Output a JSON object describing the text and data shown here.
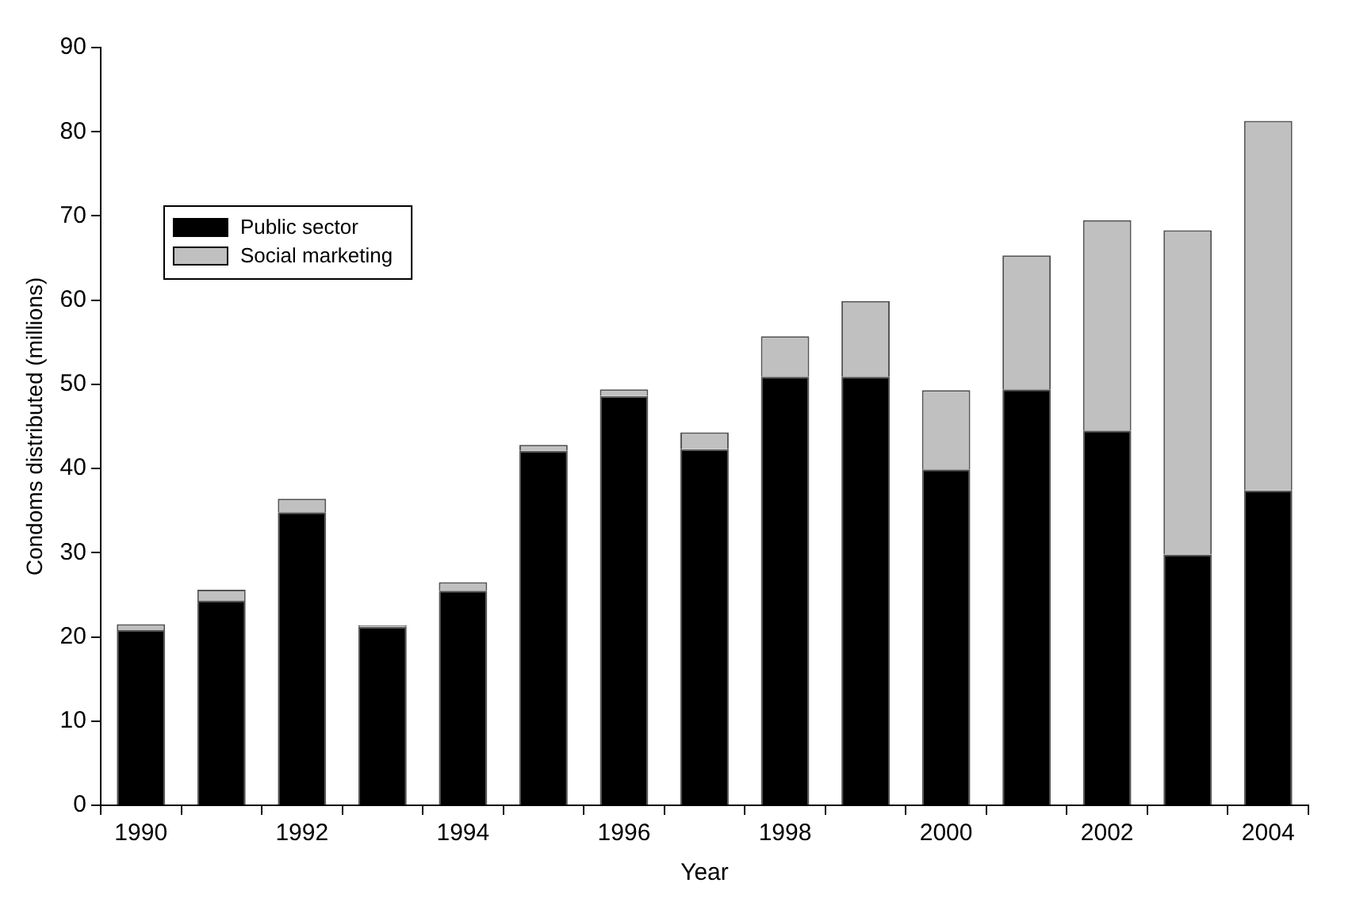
{
  "chart_data": {
    "type": "bar",
    "stacked": true,
    "xlabel": "Year",
    "ylabel": "Condoms distributed (millions)",
    "categories": [
      "1990",
      null,
      "1992",
      null,
      "1994",
      null,
      "1996",
      null,
      "1998",
      null,
      "2000",
      null,
      "2002",
      null,
      "2004"
    ],
    "series": [
      {
        "name": "Public sector",
        "color": "#000000",
        "values": [
          20.8,
          24.3,
          34.8,
          21.2,
          25.5,
          42.1,
          48.6,
          42.3,
          50.9,
          50.9,
          39.9,
          49.4,
          44.5,
          29.8,
          37.4
        ]
      },
      {
        "name": "Social marketing",
        "color": "#c0c0c0",
        "values": [
          0.7,
          1.3,
          1.6,
          0.2,
          1.0,
          0.7,
          0.8,
          2.0,
          4.8,
          9.0,
          9.4,
          15.9,
          25.0,
          38.5,
          43.9
        ]
      }
    ],
    "ylim": [
      0,
      90
    ],
    "yticks": [
      0,
      10,
      20,
      30,
      40,
      50,
      60,
      70,
      80,
      90
    ],
    "grid": false,
    "legend": "top left"
  }
}
